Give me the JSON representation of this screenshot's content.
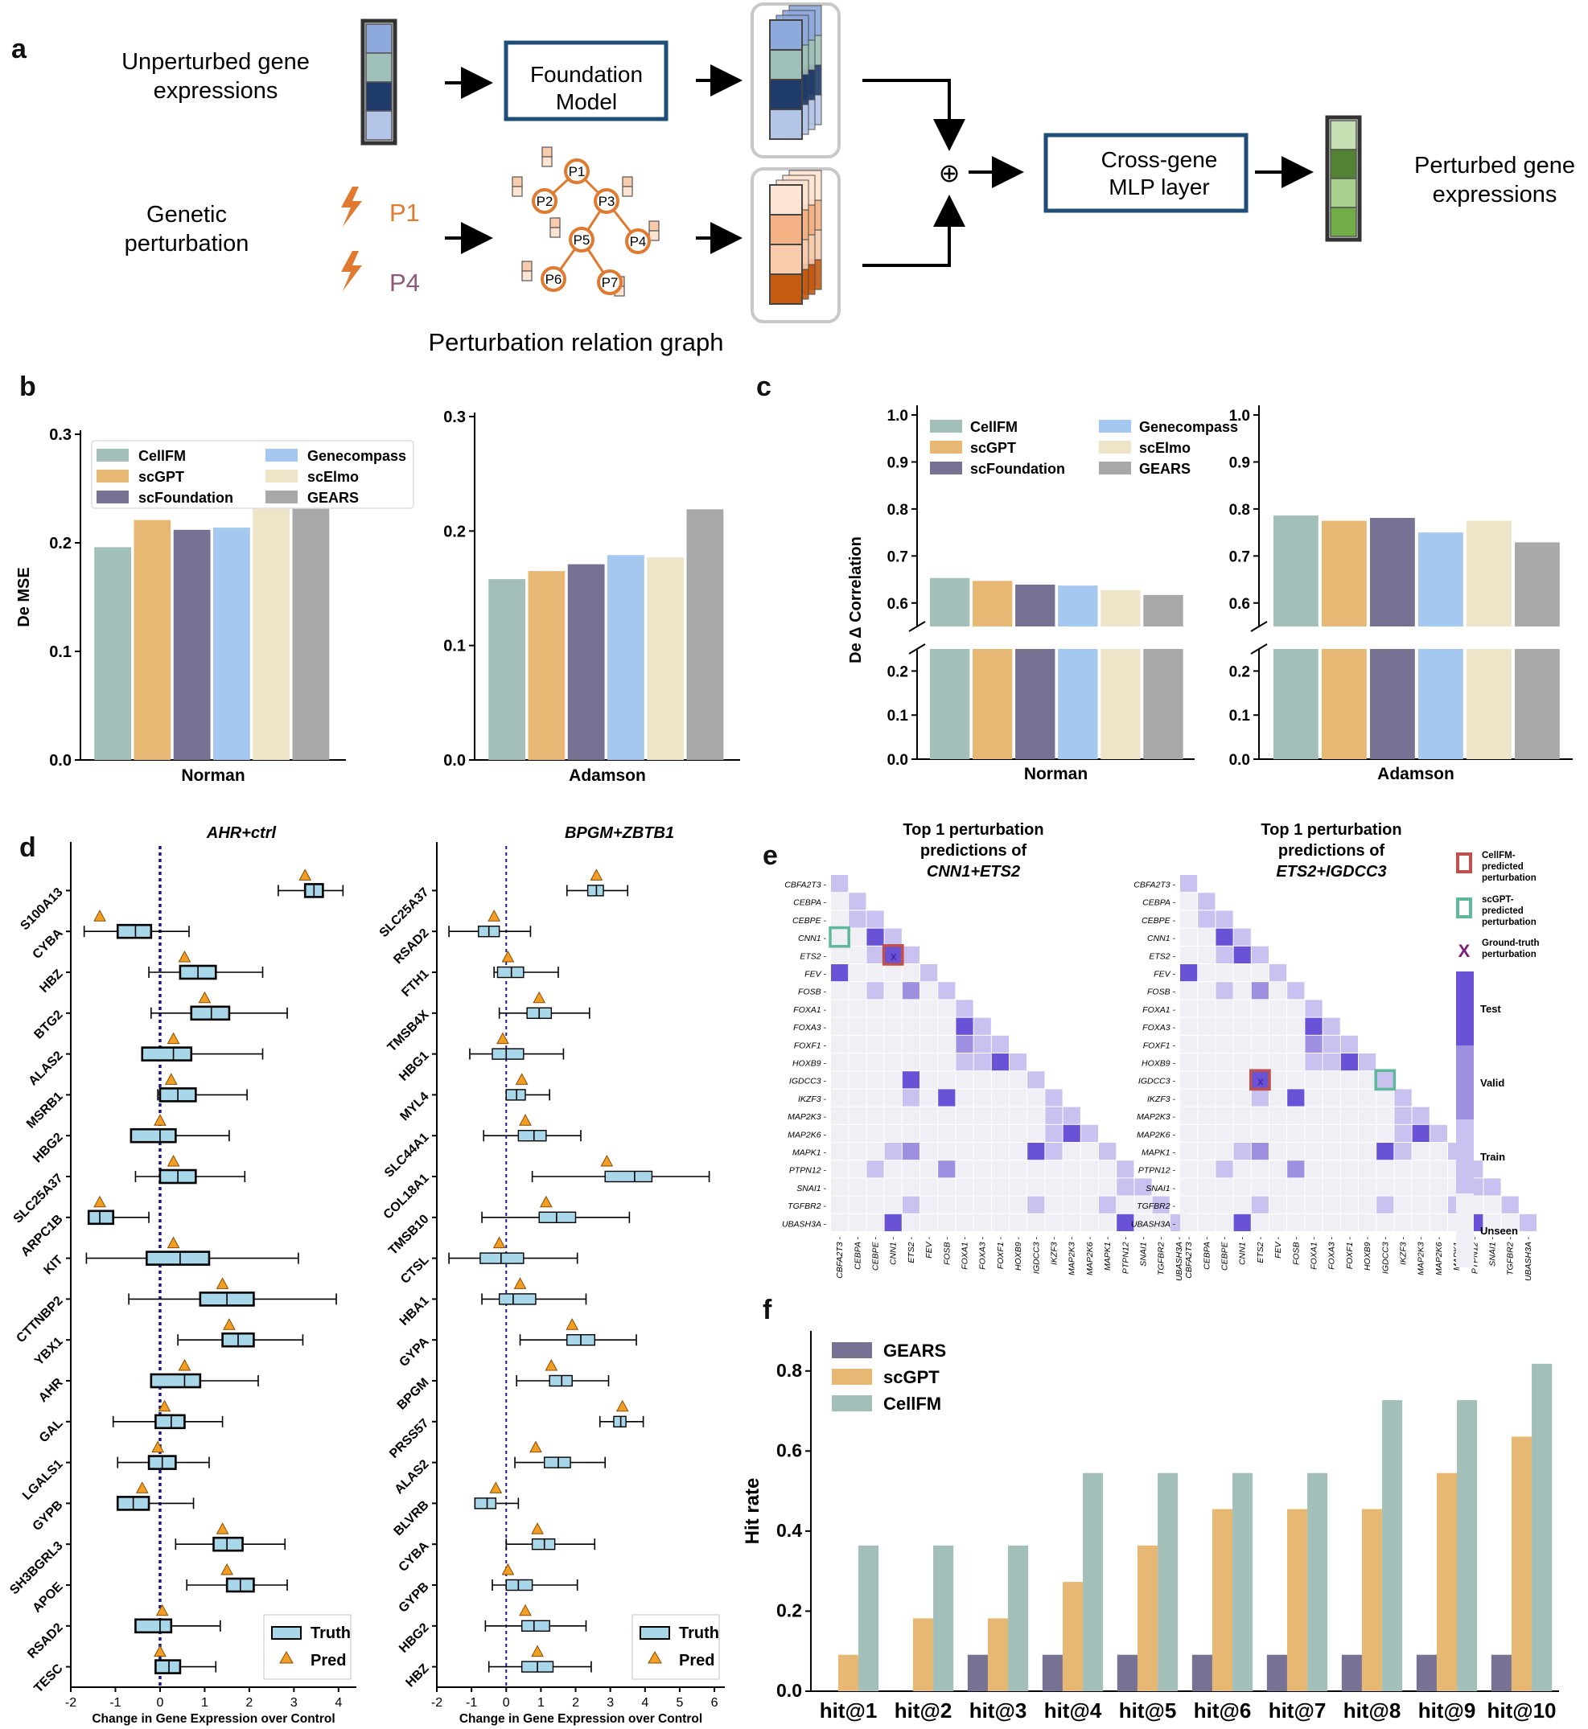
{
  "panel_letters": [
    "a",
    "b",
    "c",
    "d",
    "e",
    "f"
  ],
  "schematic": {
    "unperturbed_label": "Unperturbed gene\nexpressions",
    "genetic_label": "Genetic\nperturbation",
    "p1": "P1",
    "p4": "P4",
    "foundation_model": "Foundation\nModel",
    "graph_title": "Perturbation relation graph",
    "graph_nodes": [
      "P1",
      "P2",
      "P3",
      "P4",
      "P5",
      "P6",
      "P7"
    ],
    "oplus": "⊕",
    "mlp": "Cross-gene\nMLP layer",
    "output_label": "Perturbed gene\nexpressions",
    "colors": {
      "unperturbed": [
        "#8ea9db",
        "#9fc0b8",
        "#1f3c6b",
        "#b4c6e7"
      ],
      "perturb": [
        "#fde3d1",
        "#f4b183",
        "#f8cbad",
        "#c55a11"
      ],
      "output": [
        "#c6e0b4",
        "#548235",
        "#a9d18e",
        "#70ad47"
      ],
      "box_border": "#1f4e79",
      "graph": "#e07a30"
    }
  },
  "chart_data": [
    {
      "id": "b-norman",
      "type": "bar",
      "title": "",
      "xlabel": "Norman",
      "ylabel": "De MSE",
      "categories": [
        "CellFM",
        "scGPT",
        "scFoundation",
        "Genecompass",
        "scElmo",
        "GEARS"
      ],
      "values": [
        0.196,
        0.221,
        0.212,
        0.214,
        0.24,
        0.243
      ],
      "ylim": [
        0,
        0.3
      ],
      "yticks": [
        "0.0",
        "0.1",
        "0.2",
        "0.3"
      ],
      "legend": [
        "CellFM",
        "scGPT",
        "scFoundation",
        "Genecompass",
        "scElmo",
        "GEARS"
      ],
      "colors": [
        "#a3bfb9",
        "#e6b874",
        "#777194",
        "#a4c8ef",
        "#eee5c9",
        "#a8a8a8"
      ]
    },
    {
      "id": "b-adamson",
      "type": "bar",
      "title": "",
      "xlabel": "Adamson",
      "ylabel": "",
      "categories": [
        "CellFM",
        "scGPT",
        "scFoundation",
        "Genecompass",
        "scElmo",
        "GEARS"
      ],
      "values": [
        0.158,
        0.165,
        0.171,
        0.179,
        0.177,
        0.219
      ],
      "ylim": [
        0,
        0.3
      ],
      "yticks": [
        "0.0",
        "0.1",
        "0.2",
        "0.3"
      ],
      "colors": [
        "#a3bfb9",
        "#e6b874",
        "#777194",
        "#a4c8ef",
        "#eee5c9",
        "#a8a8a8"
      ]
    },
    {
      "id": "c-norman",
      "type": "bar",
      "title": "",
      "xlabel": "Norman",
      "ylabel": "De Δ Correlation",
      "categories": [
        "CellFM",
        "scGPT",
        "scFoundation",
        "Genecompass",
        "scElmo",
        "GEARS"
      ],
      "values": [
        0.653,
        0.647,
        0.639,
        0.637,
        0.627,
        0.617
      ],
      "broken_axis": {
        "lower": [
          0,
          0.25
        ],
        "upper": [
          0.55,
          1.0
        ]
      },
      "yticks_lower": [
        "0.0",
        "0.1",
        "0.2"
      ],
      "yticks_upper": [
        "0.6",
        "0.7",
        "0.8",
        "0.9",
        "1.0"
      ],
      "legend": [
        "CellFM",
        "scGPT",
        "scFoundation",
        "Genecompass",
        "scElmo",
        "GEARS"
      ],
      "colors": [
        "#a3bfb9",
        "#e6b874",
        "#777194",
        "#a4c8ef",
        "#eee5c9",
        "#a8a8a8"
      ]
    },
    {
      "id": "c-adamson",
      "type": "bar",
      "title": "",
      "xlabel": "Adamson",
      "ylabel": "",
      "categories": [
        "CellFM",
        "scGPT",
        "scFoundation",
        "Genecompass",
        "scElmo",
        "GEARS"
      ],
      "values": [
        0.786,
        0.775,
        0.781,
        0.75,
        0.775,
        0.729
      ],
      "broken_axis": {
        "lower": [
          0,
          0.25
        ],
        "upper": [
          0.55,
          1.0
        ]
      },
      "yticks_lower": [
        "0.0",
        "0.1",
        "0.2"
      ],
      "yticks_upper": [
        "0.6",
        "0.7",
        "0.8",
        "0.9",
        "1.0"
      ],
      "colors": [
        "#a3bfb9",
        "#e6b874",
        "#777194",
        "#a4c8ef",
        "#eee5c9",
        "#a8a8a8"
      ]
    },
    {
      "id": "d-ahr",
      "type": "box",
      "title": "AHR+ctrl",
      "xlabel": "Change in Gene Expression over Control",
      "xlim": [
        -2,
        4.4
      ],
      "xticks": [
        "-2",
        "-1",
        "0",
        "1",
        "2",
        "3",
        "4"
      ],
      "legend": [
        "Truth",
        "Pred"
      ],
      "genes": [
        "S100A13",
        "CYBA",
        "HBZ",
        "BTG2",
        "ALAS2",
        "MSRB1",
        "HBG2",
        "SLC25A37",
        "ARPC1B",
        "KIT",
        "CTTNBP2",
        "YBX1",
        "AHR",
        "GAL",
        "LGALS1",
        "GYPB",
        "SH3BGRL3",
        "APOE",
        "RSAD2",
        "TESC"
      ],
      "boxes": [
        [
          2.65,
          3.25,
          3.45,
          3.65,
          4.1,
          3.25
        ],
        [
          -1.7,
          -0.95,
          -0.55,
          -0.2,
          0.65,
          -1.35
        ],
        [
          -0.25,
          0.45,
          0.85,
          1.25,
          2.3,
          0.55
        ],
        [
          -0.2,
          0.7,
          1.15,
          1.55,
          2.85,
          1.0
        ],
        [
          -0.4,
          -0.4,
          0.3,
          0.7,
          2.3,
          0.3
        ],
        [
          -0.05,
          0.0,
          0.4,
          0.8,
          1.95,
          0.25
        ],
        [
          -0.65,
          -0.65,
          0.0,
          0.35,
          1.55,
          0.0
        ],
        [
          -0.55,
          0.0,
          0.4,
          0.8,
          1.9,
          0.3
        ],
        [
          -1.6,
          -1.6,
          -1.35,
          -1.05,
          -0.25,
          -1.35
        ],
        [
          -1.65,
          -0.3,
          0.45,
          1.1,
          3.1,
          0.3
        ],
        [
          -0.7,
          0.9,
          1.5,
          2.1,
          3.95,
          1.4
        ],
        [
          0.4,
          1.4,
          1.75,
          2.1,
          3.2,
          1.55
        ],
        [
          -0.2,
          -0.2,
          0.55,
          0.9,
          2.2,
          0.55
        ],
        [
          -1.05,
          -0.1,
          0.25,
          0.55,
          1.4,
          0.1
        ],
        [
          -0.95,
          -0.25,
          0.05,
          0.35,
          1.1,
          -0.05
        ],
        [
          -0.95,
          -0.95,
          -0.6,
          -0.25,
          0.75,
          -0.4
        ],
        [
          0.35,
          1.2,
          1.5,
          1.85,
          2.8,
          1.4
        ],
        [
          0.6,
          1.5,
          1.8,
          2.1,
          2.85,
          1.5
        ],
        [
          -0.55,
          -0.55,
          0.0,
          0.25,
          1.35,
          0.05
        ],
        [
          -0.1,
          -0.1,
          0.2,
          0.45,
          1.25,
          0.0
        ]
      ]
    },
    {
      "id": "d-bpgm",
      "type": "box",
      "title": "BPGM+ZBTB1",
      "xlabel": "Change in Gene Expression over Control",
      "xlim": [
        -2,
        6.3
      ],
      "xticks": [
        "-2",
        "-1",
        "0",
        "1",
        "2",
        "3",
        "4",
        "5",
        "6"
      ],
      "legend": [
        "Truth",
        "Pred"
      ],
      "genes": [
        "SLC25A37",
        "RSAD2",
        "FTH1",
        "TMSB4X",
        "HBG1",
        "MYL4",
        "SLC44A1",
        "COL18A1",
        "TMSB10",
        "CTSL",
        "HBA1",
        "GYPA",
        "BPGM",
        "PRSS57",
        "ALAS2",
        "BLVRB",
        "CYBA",
        "GYPB",
        "HBG2",
        "HBZ"
      ],
      "boxes": [
        [
          1.75,
          2.35,
          2.6,
          2.8,
          3.5,
          2.6
        ],
        [
          -1.65,
          -0.8,
          -0.5,
          -0.2,
          0.7,
          -0.35
        ],
        [
          -0.35,
          -0.25,
          0.15,
          0.5,
          1.5,
          0.05
        ],
        [
          -0.2,
          0.6,
          0.95,
          1.3,
          2.4,
          0.95
        ],
        [
          -1.05,
          -0.4,
          0.0,
          0.5,
          1.65,
          -0.1
        ],
        [
          0.0,
          0.0,
          0.3,
          0.55,
          1.25,
          0.45
        ],
        [
          -0.65,
          0.35,
          0.8,
          1.15,
          2.15,
          0.55
        ],
        [
          0.75,
          2.85,
          3.7,
          4.2,
          5.85,
          2.9
        ],
        [
          -0.7,
          0.95,
          1.45,
          2.0,
          3.55,
          1.15
        ],
        [
          -1.65,
          -0.75,
          -0.15,
          0.5,
          2.05,
          -0.2
        ],
        [
          -0.7,
          -0.2,
          0.2,
          0.85,
          2.3,
          0.4
        ],
        [
          0.4,
          1.75,
          2.15,
          2.55,
          3.75,
          1.9
        ],
        [
          0.3,
          1.25,
          1.6,
          1.9,
          2.95,
          1.3
        ],
        [
          2.7,
          3.1,
          3.3,
          3.45,
          3.95,
          3.35
        ],
        [
          0.25,
          1.1,
          1.5,
          1.85,
          2.85,
          0.85
        ],
        [
          -0.9,
          -0.9,
          -0.55,
          -0.3,
          0.35,
          -0.3
        ],
        [
          0.0,
          0.75,
          1.1,
          1.4,
          2.55,
          0.9
        ],
        [
          -0.4,
          0.0,
          0.35,
          0.75,
          2.05,
          0.05
        ],
        [
          -0.6,
          0.45,
          0.8,
          1.25,
          2.3,
          0.55
        ],
        [
          -0.5,
          0.45,
          0.9,
          1.35,
          2.45,
          0.9
        ]
      ]
    },
    {
      "id": "e-heatmaps",
      "type": "heatmap",
      "title_left": "Top 1 perturbation\npredictions of",
      "title_left_italic": "CNN1+ETS2",
      "title_right": "Top 1 perturbation\npredictions of",
      "title_right_italic": "ETS2+IGDCC3",
      "genes": [
        "CBFA2T3",
        "CEBPA",
        "CEBPE",
        "CNN1",
        "ETS2",
        "FEV",
        "FOSB",
        "FOXA1",
        "FOXA3",
        "FOXF1",
        "HOXB9",
        "IGDCC3",
        "IKZF3",
        "MAP2K3",
        "MAP2K6",
        "MAPK1",
        "PTPN12",
        "SNAI1",
        "TGFBR2",
        "UBASH3A"
      ],
      "legend_items": [
        "CellFM-predicted perturbation",
        "scGPT-predicted perturbation",
        "Ground-truth perturbation"
      ],
      "legend_marker_x": "X",
      "colorbar": [
        "Test",
        "Valid",
        "Train",
        "Unseen"
      ],
      "colorbar_colors": [
        "#6a52d6",
        "#9e8fe0",
        "#c9c1ef",
        "#efeff5"
      ],
      "cells": [
        [
          0,
          0,
          2
        ],
        [
          1,
          1,
          2
        ],
        [
          2,
          1,
          2
        ],
        [
          2,
          2,
          2
        ],
        [
          3,
          2,
          0
        ],
        [
          3,
          3,
          2
        ],
        [
          4,
          2,
          2
        ],
        [
          4,
          3,
          0
        ],
        [
          4,
          4,
          2
        ],
        [
          5,
          0,
          0
        ],
        [
          5,
          5,
          2
        ],
        [
          6,
          2,
          2
        ],
        [
          6,
          4,
          1
        ],
        [
          6,
          6,
          2
        ],
        [
          7,
          7,
          2
        ],
        [
          8,
          7,
          0
        ],
        [
          8,
          8,
          2
        ],
        [
          9,
          7,
          1
        ],
        [
          9,
          8,
          2
        ],
        [
          9,
          9,
          2
        ],
        [
          10,
          7,
          2
        ],
        [
          10,
          8,
          2
        ],
        [
          10,
          9,
          0
        ],
        [
          10,
          10,
          2
        ],
        [
          11,
          4,
          0
        ],
        [
          11,
          11,
          2
        ],
        [
          12,
          4,
          2
        ],
        [
          12,
          6,
          0
        ],
        [
          12,
          12,
          2
        ],
        [
          13,
          12,
          2
        ],
        [
          13,
          13,
          2
        ],
        [
          14,
          12,
          2
        ],
        [
          14,
          13,
          0
        ],
        [
          14,
          14,
          2
        ],
        [
          15,
          3,
          2
        ],
        [
          15,
          4,
          1
        ],
        [
          15,
          11,
          0
        ],
        [
          15,
          12,
          2
        ],
        [
          15,
          15,
          2
        ],
        [
          16,
          2,
          2
        ],
        [
          16,
          6,
          1
        ],
        [
          16,
          16,
          2
        ],
        [
          17,
          16,
          2
        ],
        [
          17,
          17,
          2
        ],
        [
          18,
          4,
          2
        ],
        [
          18,
          11,
          2
        ],
        [
          18,
          15,
          2
        ],
        [
          18,
          18,
          2
        ],
        [
          19,
          3,
          0
        ],
        [
          19,
          16,
          0
        ],
        [
          19,
          19,
          2
        ]
      ],
      "left_markers": {
        "cellfm": [
          4,
          3
        ],
        "scgpt": [
          3,
          0
        ],
        "truth": [
          4,
          3
        ]
      },
      "right_markers": {
        "cellfm": [
          11,
          4
        ],
        "scgpt": [
          11,
          11
        ],
        "truth": [
          11,
          4
        ]
      }
    },
    {
      "id": "f-hitrate",
      "type": "bar",
      "ylabel": "Hit rate",
      "categories": [
        "hit@1",
        "hit@2",
        "hit@3",
        "hit@4",
        "hit@5",
        "hit@6",
        "hit@7",
        "hit@8",
        "hit@9",
        "hit@10"
      ],
      "series": [
        {
          "name": "GEARS",
          "values": [
            0.0,
            0.0,
            0.091,
            0.091,
            0.091,
            0.091,
            0.091,
            0.091,
            0.091,
            0.091
          ]
        },
        {
          "name": "scGPT",
          "values": [
            0.091,
            0.182,
            0.182,
            0.273,
            0.364,
            0.455,
            0.455,
            0.455,
            0.545,
            0.636
          ]
        },
        {
          "name": "CellFM",
          "values": [
            0.364,
            0.364,
            0.364,
            0.545,
            0.545,
            0.545,
            0.545,
            0.727,
            0.727,
            0.818
          ]
        }
      ],
      "ylim": [
        0,
        0.9
      ],
      "yticks": [
        "0.0",
        "0.2",
        "0.4",
        "0.6",
        "0.8"
      ],
      "colors": [
        "#777194",
        "#e6b874",
        "#a3bfb9"
      ]
    }
  ]
}
